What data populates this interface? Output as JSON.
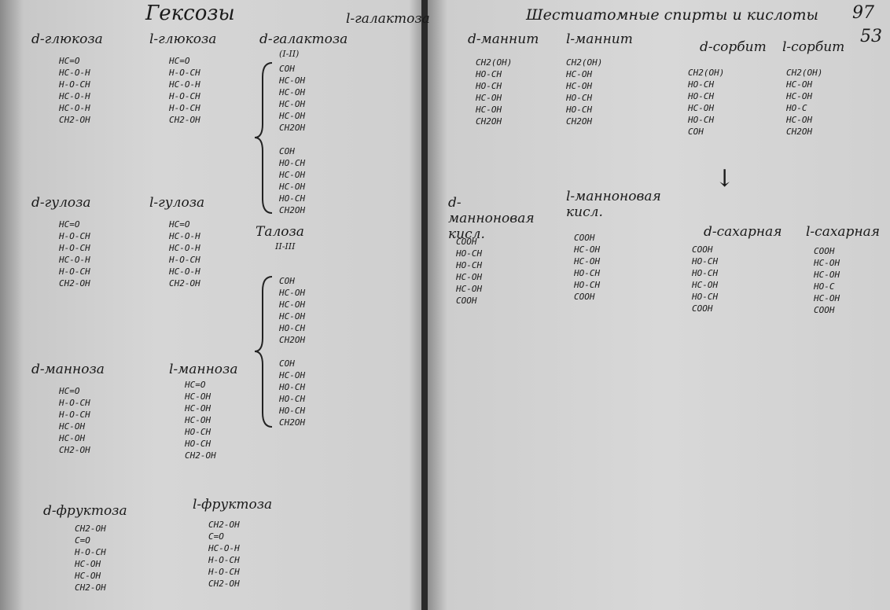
{
  "left_page": {
    "title": "Гексозы",
    "blocks": [
      {
        "label": "d-глюкоза",
        "lines": [
          "HC=O",
          "HC-O-H",
          "H-O-CH",
          "HC-O-H",
          "HC-O-H",
          "CH2-OH"
        ]
      },
      {
        "label": "l-глюкоза",
        "lines": [
          "HC=O",
          "H-O-CH",
          "HC-O-H",
          "H-O-CH",
          "H-O-CH",
          "CH2-OH"
        ]
      },
      {
        "label": "d-галактоза",
        "sub": "(I-II)",
        "lines": [
          "COH",
          "HC-OH",
          "HC-OH",
          "HC-OH",
          "HC-OH",
          "CH2OH",
          "",
          "COH",
          "HO-CH",
          "HC-OH",
          "HC-OH",
          "HO-CH",
          "CH2OH"
        ]
      },
      {
        "label": "l-галактоза",
        "lines": []
      },
      {
        "label": "d-гулоза",
        "lines": [
          "HC=O",
          "H-O-CH",
          "H-O-CH",
          "HC-O-H",
          "H-O-CH",
          "CH2-OH"
        ]
      },
      {
        "label": "l-гулоза",
        "lines": [
          "HC=O",
          "HC-O-H",
          "HC-O-H",
          "H-O-CH",
          "HC-O-H",
          "CH2-OH"
        ]
      },
      {
        "label": "Талоза",
        "sub": "II-III",
        "lines": [
          "COH",
          "HC-OH",
          "HC-OH",
          "HC-OH",
          "HO-CH",
          "CH2OH",
          "",
          "COH",
          "HC-OH",
          "HO-CH",
          "HO-CH",
          "HO-CH",
          "CH2OH"
        ]
      },
      {
        "label": "d-манноза",
        "lines": [
          "HC=O",
          "H-O-CH",
          "H-O-CH",
          "HC-OH",
          "HC-OH",
          "CH2-OH"
        ]
      },
      {
        "label": "l-манноза",
        "lines": [
          "HC=O",
          "HC-OH",
          "HC-OH",
          "HC-OH",
          "HO-CH",
          "HO-CH",
          "CH2-OH"
        ]
      },
      {
        "label": "d-фруктоза",
        "lines": [
          "CH2-OH",
          "C=O",
          "H-O-CH",
          "HC-OH",
          "HC-OH",
          "CH2-OH"
        ]
      },
      {
        "label": "l-фруктоза",
        "lines": [
          "CH2-OH",
          "C=O",
          "HC-O-H",
          "H-O-CH",
          "H-O-CH",
          "CH2-OH"
        ]
      }
    ]
  },
  "right_page": {
    "title": "Шестиатомные спирты и кислоты",
    "page_numbers": [
      "97",
      "53"
    ],
    "blocks": [
      {
        "label": "d-маннит",
        "lines": [
          "CH2(OH)",
          "HO-CH",
          "HO-CH",
          "HC-OH",
          "HC-OH",
          "CH2OH"
        ]
      },
      {
        "label": "l-маннит",
        "lines": [
          "CH2(OH)",
          "HC-OH",
          "HC-OH",
          "HO-CH",
          "HO-CH",
          "CH2OH"
        ]
      },
      {
        "label": "d-сорбит",
        "lines": [
          "CH2(OH)",
          "HO-CH",
          "HO-CH",
          "HC-OH",
          "HO-CH",
          "COH"
        ]
      },
      {
        "label": "l-сорбит",
        "lines": [
          "CH2(OH)",
          "HC-OH",
          "HC-OH",
          "HO-C",
          "HC-OH",
          "CH2OH"
        ]
      },
      {
        "label": "d-манноновая кисл.",
        "lines": [
          "COOH",
          "HO-CH",
          "HO-CH",
          "HC-OH",
          "HC-OH",
          "COOH"
        ]
      },
      {
        "label": "l-манноновая кисл.",
        "lines": [
          "COOH",
          "HC-OH",
          "HC-OH",
          "HO-CH",
          "HO-CH",
          "COOH"
        ]
      },
      {
        "label": "d-сахарная",
        "lines": [
          "COOH",
          "HO-CH",
          "HO-CH",
          "HC-OH",
          "HO-CH",
          "COOH"
        ]
      },
      {
        "label": "l-сахарная",
        "lines": [
          "COOH",
          "HC-OH",
          "HC-OH",
          "HO-C",
          "HC-OH",
          "COOH"
        ]
      }
    ]
  }
}
